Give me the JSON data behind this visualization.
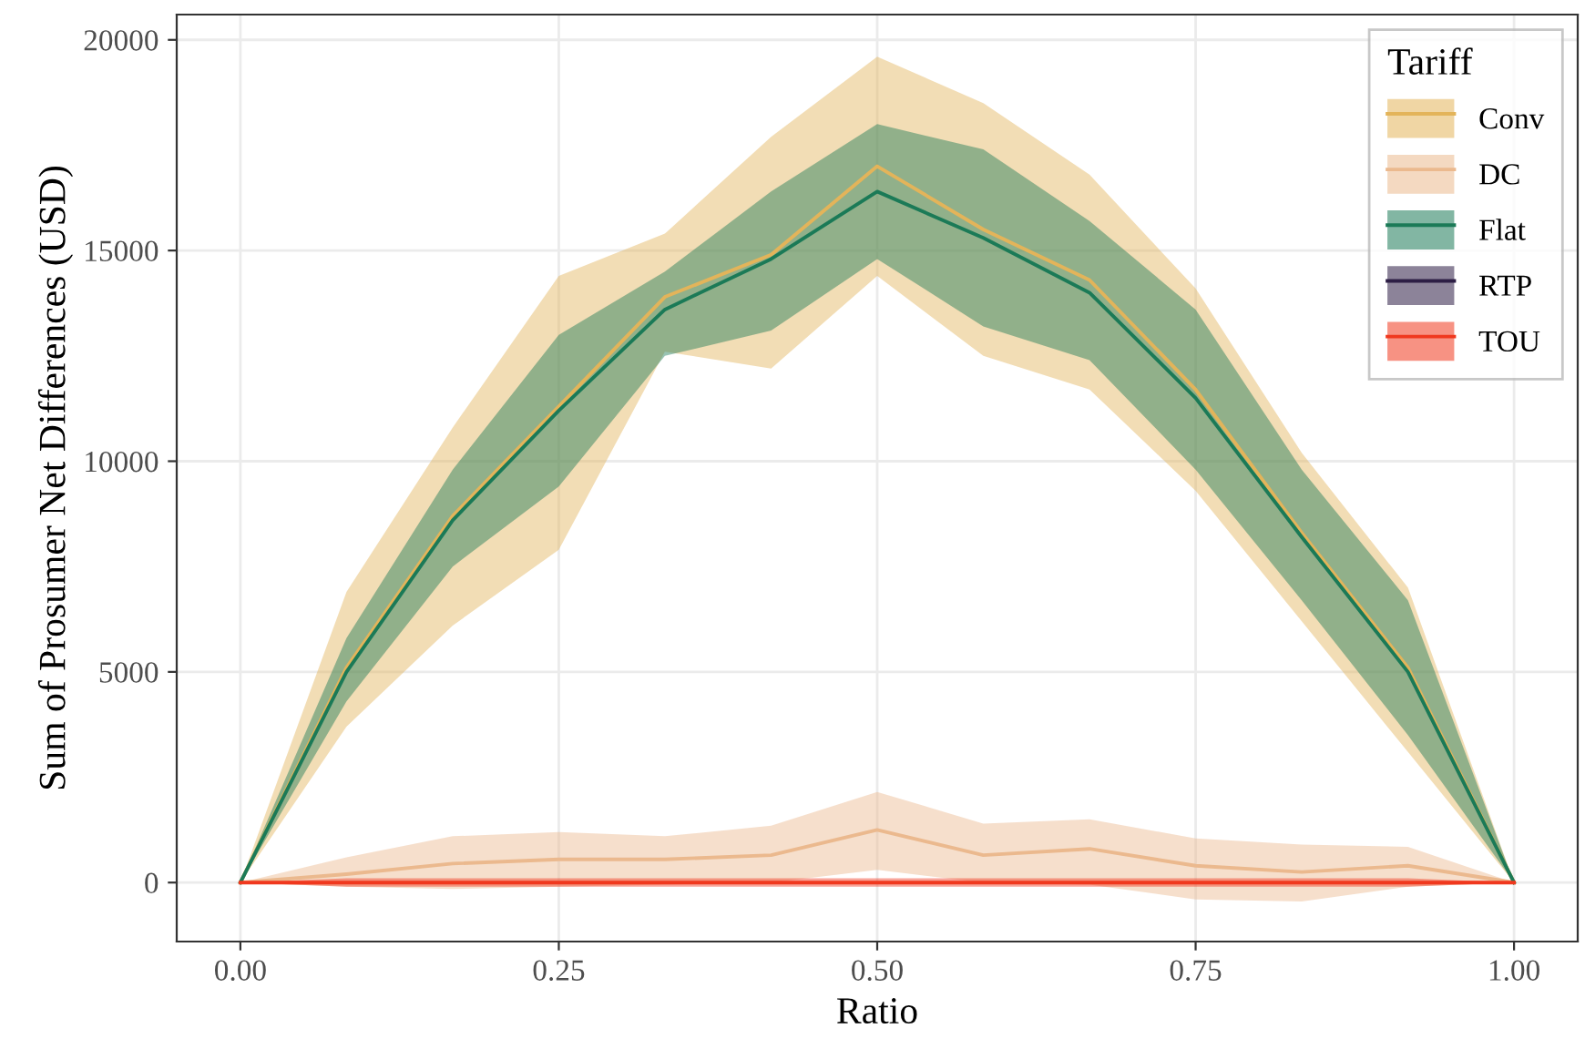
{
  "chart_data": {
    "type": "line",
    "xlabel": "Ratio",
    "ylabel": "Sum of Prosumer Net Differences (USD)",
    "legend_title": "Tariff",
    "legend": "top right",
    "grid": true,
    "xlim": [
      -0.05,
      1.05
    ],
    "ylim": [
      -1400,
      20600
    ],
    "xticks": [
      {
        "value": 0,
        "label": "0.00"
      },
      {
        "value": 0.25,
        "label": "0.25"
      },
      {
        "value": 0.5,
        "label": "0.50"
      },
      {
        "value": 0.75,
        "label": "0.75"
      },
      {
        "value": 1,
        "label": "1.00"
      }
    ],
    "yticks": [
      0,
      5000,
      10000,
      15000,
      20000
    ],
    "x": [
      0,
      0.0833,
      0.1667,
      0.25,
      0.3333,
      0.4167,
      0.5,
      0.5833,
      0.6667,
      0.75,
      0.8333,
      0.9167,
      1
    ],
    "series": [
      {
        "name": "Conv",
        "color": "#e3b45a",
        "values": [
          0,
          5100,
          8700,
          11300,
          13900,
          14900,
          17000,
          15500,
          14300,
          11700,
          8300,
          5100,
          0
        ],
        "lower": [
          0,
          3700,
          6100,
          7900,
          12600,
          12200,
          14400,
          12500,
          11700,
          9300,
          6200,
          3100,
          0
        ],
        "upper": [
          0,
          6900,
          10800,
          14400,
          15400,
          17700,
          19600,
          18500,
          16800,
          14100,
          10200,
          7000,
          0
        ]
      },
      {
        "name": "DC",
        "color": "#ebb98e",
        "values": [
          0,
          200,
          450,
          550,
          550,
          650,
          1250,
          650,
          800,
          400,
          250,
          400,
          0
        ],
        "lower": [
          0,
          -100,
          -150,
          -100,
          -50,
          0,
          300,
          0,
          -50,
          -400,
          -450,
          -100,
          0
        ],
        "upper": [
          0,
          600,
          1100,
          1200,
          1100,
          1350,
          2150,
          1400,
          1500,
          1050,
          900,
          850,
          0
        ]
      },
      {
        "name": "Flat",
        "color": "#1b7a57",
        "values": [
          0,
          5000,
          8600,
          11200,
          13600,
          14800,
          16400,
          15300,
          14000,
          11500,
          8200,
          5000,
          0
        ],
        "lower": [
          0,
          4300,
          7500,
          9400,
          12500,
          13100,
          14800,
          13200,
          12400,
          9800,
          6700,
          3500,
          0
        ],
        "upper": [
          0,
          5800,
          9800,
          13000,
          14500,
          16400,
          18000,
          17400,
          15700,
          13600,
          9800,
          6700,
          0
        ]
      },
      {
        "name": "RTP",
        "color": "#2d1e45",
        "values": [
          null,
          null,
          null,
          null,
          null,
          null,
          null,
          null,
          null,
          null,
          null,
          null,
          null
        ]
      },
      {
        "name": "TOU",
        "color": "#f0381e",
        "values": [
          0,
          0,
          0,
          0,
          0,
          0,
          0,
          0,
          0,
          0,
          0,
          0,
          0
        ],
        "lower": [
          0,
          -100,
          -100,
          -100,
          -100,
          -100,
          -100,
          -100,
          -100,
          -100,
          -100,
          -100,
          0
        ],
        "upper": [
          0,
          100,
          100,
          100,
          100,
          100,
          100,
          100,
          100,
          100,
          100,
          100,
          0
        ]
      }
    ]
  }
}
